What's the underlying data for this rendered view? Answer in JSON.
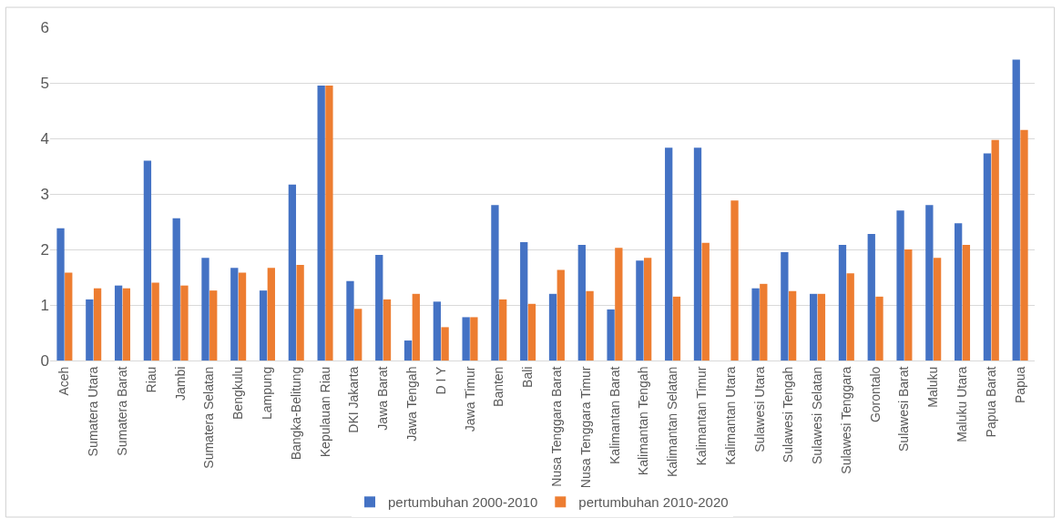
{
  "chart_data": {
    "type": "bar",
    "categories": [
      "Aceh",
      "Sumatera Utara",
      "Sumatera Barat",
      "Riau",
      "Jambi",
      "Sumatera Selatan",
      "Bengkulu",
      "Lampung",
      "Bangka-Belitung",
      "Kepulauan Riau",
      "DKI Jakarta",
      "Jawa Barat",
      "Jawa Tengah",
      "D I Y",
      "Jawa Timur",
      "Banten",
      "Bali",
      "Nusa Tenggara Barat",
      "Nusa Tenggara Timur",
      "Kalimantan Barat",
      "Kalimantan Tengah",
      "Kalimantan Selatan",
      "Kalimantan Timur",
      "Kalimantan Utara",
      "Sulawesi Utara",
      "Sulawesi Tengah",
      "Sulawesi Selatan",
      "Sulawesi Tenggara",
      "Gorontalo",
      "Sulawesi Barat",
      "Maluku",
      "Maluku Utara",
      "Papua Barat",
      "Papua"
    ],
    "series": [
      {
        "name": "pertumbuhan 2000-2010",
        "color": "#4472c4",
        "values": [
          2.38,
          1.1,
          1.35,
          3.6,
          2.56,
          1.85,
          1.67,
          1.26,
          3.17,
          4.95,
          1.43,
          1.9,
          0.36,
          1.06,
          0.78,
          2.8,
          2.13,
          1.2,
          2.08,
          0.92,
          1.8,
          3.83,
          3.83,
          null,
          1.3,
          1.95,
          1.2,
          2.08,
          2.28,
          2.7,
          2.8,
          2.47,
          3.73,
          5.42
        ]
      },
      {
        "name": "pertumbuhan 2010-2020",
        "color": "#ed7d31",
        "values": [
          1.58,
          1.3,
          1.3,
          1.4,
          1.35,
          1.26,
          1.58,
          1.67,
          1.72,
          4.95,
          0.93,
          1.1,
          1.2,
          0.6,
          0.78,
          1.1,
          1.02,
          1.63,
          1.25,
          2.03,
          1.85,
          1.15,
          2.12,
          2.88,
          1.38,
          1.25,
          1.2,
          1.57,
          1.15,
          2.0,
          1.85,
          2.08,
          3.97,
          4.15
        ]
      }
    ],
    "ylim": [
      0,
      6
    ],
    "yticks": [
      0,
      1,
      2,
      3,
      4,
      5,
      6
    ],
    "grid": "y",
    "legend": "bottom"
  }
}
